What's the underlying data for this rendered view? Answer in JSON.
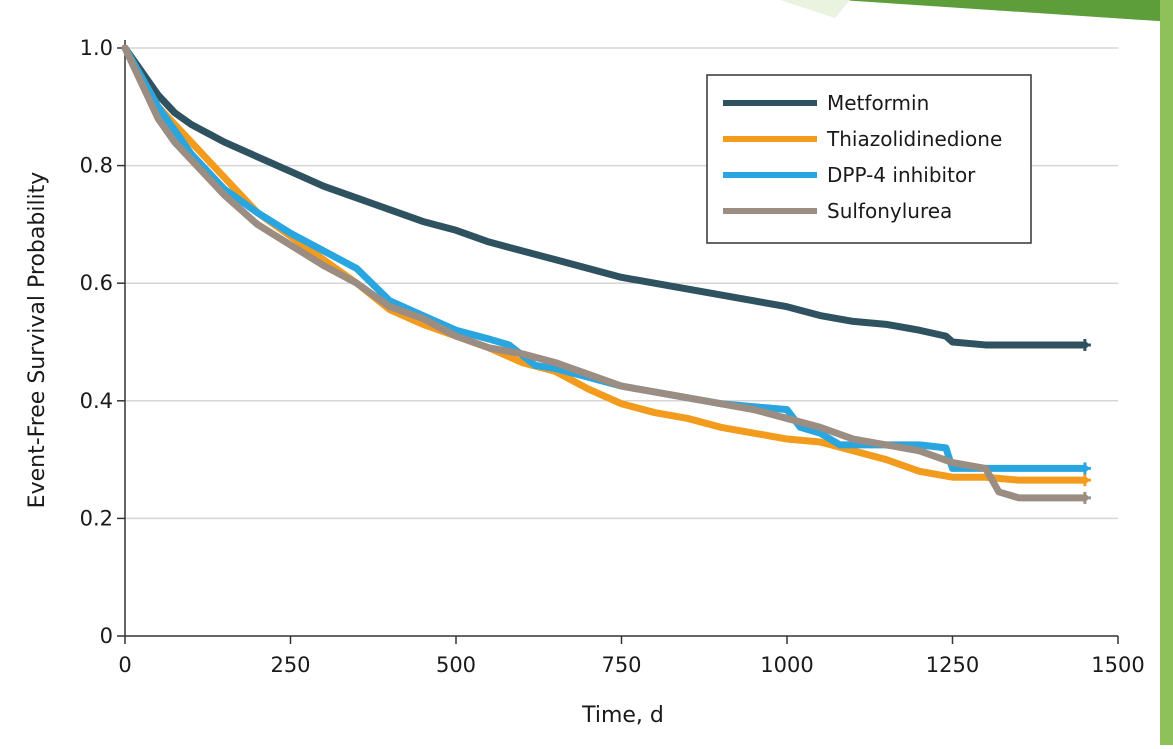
{
  "chart_data": {
    "type": "line",
    "title": "",
    "xlabel": "Time, d",
    "ylabel": "Event-Free Survival Probability",
    "xlim": [
      0,
      1500
    ],
    "ylim": [
      0,
      1.0
    ],
    "x_ticks": [
      "0",
      "250",
      "500",
      "750",
      "1000",
      "1250",
      "1500"
    ],
    "y_ticks": [
      "0",
      "0.2",
      "0.4",
      "0.6",
      "0.8",
      "1.0"
    ],
    "grid": "horizontal",
    "legend_position": "top-right",
    "series": [
      {
        "name": "Metformin",
        "color": "#2f5260",
        "points": [
          [
            0,
            1.0
          ],
          [
            25,
            0.96
          ],
          [
            50,
            0.92
          ],
          [
            75,
            0.89
          ],
          [
            100,
            0.87
          ],
          [
            125,
            0.855
          ],
          [
            150,
            0.84
          ],
          [
            200,
            0.815
          ],
          [
            250,
            0.79
          ],
          [
            300,
            0.765
          ],
          [
            350,
            0.745
          ],
          [
            400,
            0.725
          ],
          [
            450,
            0.705
          ],
          [
            500,
            0.69
          ],
          [
            550,
            0.67
          ],
          [
            600,
            0.655
          ],
          [
            650,
            0.64
          ],
          [
            700,
            0.625
          ],
          [
            750,
            0.61
          ],
          [
            800,
            0.6
          ],
          [
            850,
            0.59
          ],
          [
            900,
            0.58
          ],
          [
            950,
            0.57
          ],
          [
            1000,
            0.56
          ],
          [
            1050,
            0.545
          ],
          [
            1100,
            0.535
          ],
          [
            1150,
            0.53
          ],
          [
            1200,
            0.52
          ],
          [
            1240,
            0.51
          ],
          [
            1250,
            0.5
          ],
          [
            1300,
            0.495
          ],
          [
            1350,
            0.495
          ],
          [
            1450,
            0.495
          ]
        ]
      },
      {
        "name": "Thiazolidinedione",
        "color": "#f29b1d",
        "points": [
          [
            0,
            1.0
          ],
          [
            25,
            0.95
          ],
          [
            50,
            0.9
          ],
          [
            75,
            0.87
          ],
          [
            100,
            0.84
          ],
          [
            125,
            0.81
          ],
          [
            150,
            0.78
          ],
          [
            200,
            0.72
          ],
          [
            250,
            0.68
          ],
          [
            300,
            0.64
          ],
          [
            350,
            0.6
          ],
          [
            400,
            0.555
          ],
          [
            450,
            0.53
          ],
          [
            500,
            0.51
          ],
          [
            550,
            0.49
          ],
          [
            600,
            0.465
          ],
          [
            650,
            0.45
          ],
          [
            700,
            0.42
          ],
          [
            750,
            0.395
          ],
          [
            800,
            0.38
          ],
          [
            850,
            0.37
          ],
          [
            900,
            0.355
          ],
          [
            950,
            0.345
          ],
          [
            1000,
            0.335
          ],
          [
            1050,
            0.33
          ],
          [
            1100,
            0.315
          ],
          [
            1150,
            0.3
          ],
          [
            1200,
            0.28
          ],
          [
            1250,
            0.27
          ],
          [
            1300,
            0.27
          ],
          [
            1350,
            0.265
          ],
          [
            1450,
            0.265
          ]
        ]
      },
      {
        "name": "DPP-4 inhibitor",
        "color": "#29a6e0",
        "points": [
          [
            0,
            1.0
          ],
          [
            25,
            0.95
          ],
          [
            50,
            0.9
          ],
          [
            75,
            0.86
          ],
          [
            100,
            0.82
          ],
          [
            125,
            0.79
          ],
          [
            150,
            0.76
          ],
          [
            200,
            0.72
          ],
          [
            250,
            0.685
          ],
          [
            300,
            0.655
          ],
          [
            350,
            0.625
          ],
          [
            400,
            0.57
          ],
          [
            450,
            0.545
          ],
          [
            500,
            0.52
          ],
          [
            550,
            0.505
          ],
          [
            580,
            0.495
          ],
          [
            620,
            0.46
          ],
          [
            650,
            0.455
          ],
          [
            700,
            0.44
          ],
          [
            750,
            0.425
          ],
          [
            800,
            0.415
          ],
          [
            850,
            0.405
          ],
          [
            900,
            0.395
          ],
          [
            950,
            0.39
          ],
          [
            1000,
            0.385
          ],
          [
            1020,
            0.355
          ],
          [
            1050,
            0.345
          ],
          [
            1080,
            0.325
          ],
          [
            1150,
            0.325
          ],
          [
            1200,
            0.325
          ],
          [
            1240,
            0.32
          ],
          [
            1250,
            0.285
          ],
          [
            1300,
            0.285
          ],
          [
            1450,
            0.285
          ]
        ]
      },
      {
        "name": "Sulfonylurea",
        "color": "#9b8d82",
        "points": [
          [
            0,
            1.0
          ],
          [
            25,
            0.94
          ],
          [
            50,
            0.88
          ],
          [
            75,
            0.84
          ],
          [
            100,
            0.81
          ],
          [
            125,
            0.78
          ],
          [
            150,
            0.75
          ],
          [
            200,
            0.7
          ],
          [
            250,
            0.665
          ],
          [
            300,
            0.63
          ],
          [
            350,
            0.6
          ],
          [
            400,
            0.56
          ],
          [
            450,
            0.54
          ],
          [
            500,
            0.51
          ],
          [
            550,
            0.49
          ],
          [
            600,
            0.48
          ],
          [
            650,
            0.465
          ],
          [
            700,
            0.445
          ],
          [
            750,
            0.425
          ],
          [
            800,
            0.415
          ],
          [
            850,
            0.405
          ],
          [
            900,
            0.395
          ],
          [
            950,
            0.385
          ],
          [
            1000,
            0.37
          ],
          [
            1050,
            0.355
          ],
          [
            1100,
            0.335
          ],
          [
            1150,
            0.325
          ],
          [
            1200,
            0.315
          ],
          [
            1250,
            0.295
          ],
          [
            1300,
            0.285
          ],
          [
            1320,
            0.245
          ],
          [
            1350,
            0.235
          ],
          [
            1450,
            0.235
          ]
        ]
      }
    ]
  }
}
